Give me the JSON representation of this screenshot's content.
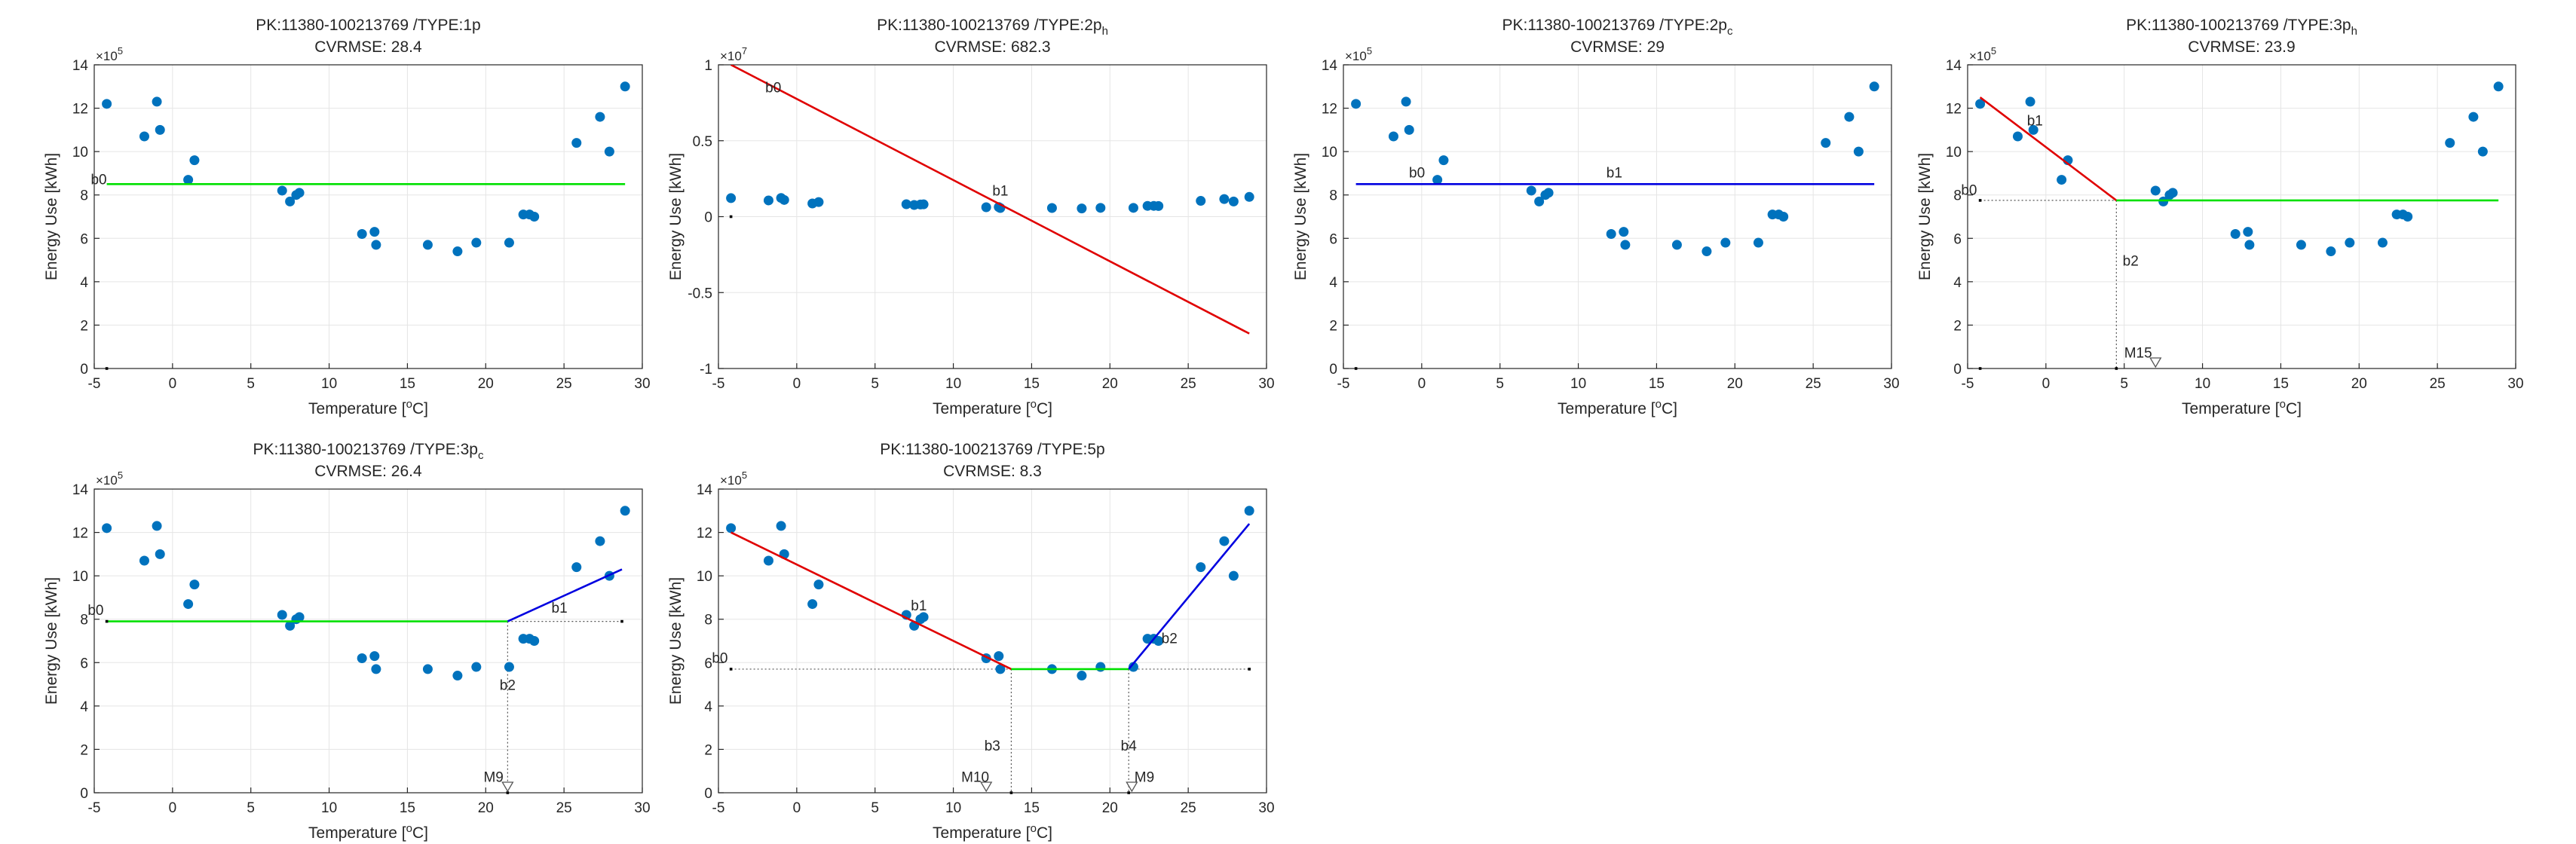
{
  "chart_data": [
    {
      "type": "scatter",
      "title": "PK:11380-100213769 /TYPE:1p",
      "title_sub": "",
      "subtitle": "CVRMSE: 28.4",
      "xlabel": "Temperature [",
      "xlabel_sup": "o",
      "xlabel_end": "C]",
      "ylabel": "Energy Use [kWh]",
      "y_exponent": "10",
      "y_exponent_power": "5",
      "xlim": [
        -5,
        30
      ],
      "ylim": [
        0,
        14
      ],
      "xticks": [
        -5,
        0,
        5,
        10,
        15,
        20,
        25,
        30
      ],
      "yticks": [
        0,
        2,
        4,
        6,
        8,
        10,
        12,
        14
      ],
      "grid": true,
      "points": [
        [
          -4.2,
          12.2
        ],
        [
          -1.8,
          10.7
        ],
        [
          -1.0,
          12.3
        ],
        [
          -0.8,
          11.0
        ],
        [
          1.0,
          8.7
        ],
        [
          1.4,
          9.6
        ],
        [
          7.0,
          8.2
        ],
        [
          7.5,
          7.7
        ],
        [
          7.9,
          8.0
        ],
        [
          8.1,
          8.1
        ],
        [
          12.1,
          6.2
        ],
        [
          12.9,
          6.3
        ],
        [
          13.0,
          5.7
        ],
        [
          16.3,
          5.7
        ],
        [
          18.2,
          5.4
        ],
        [
          19.4,
          5.8
        ],
        [
          21.5,
          5.8
        ],
        [
          22.4,
          7.1
        ],
        [
          22.8,
          7.1
        ],
        [
          23.1,
          7.0
        ],
        [
          25.8,
          10.4
        ],
        [
          27.3,
          11.6
        ],
        [
          27.9,
          10.0
        ],
        [
          28.9,
          13.0
        ]
      ],
      "segments": [
        {
          "x": [
            -4.2,
            28.9
          ],
          "y": [
            8.5,
            8.5
          ],
          "color": "#00e000"
        }
      ],
      "dotted": [],
      "markers": [
        {
          "x": -4.2,
          "y": 0
        }
      ],
      "annotations": [
        {
          "text": "b0",
          "x": -4.2,
          "y": 8.5,
          "anchor": "end"
        }
      ]
    },
    {
      "type": "scatter",
      "title": "PK:11380-100213769 /TYPE:2p",
      "title_sub": "h",
      "subtitle": "CVRMSE: 682.3",
      "xlabel": "Temperature [",
      "xlabel_sup": "o",
      "xlabel_end": "C]",
      "ylabel": "Energy Use [kWh]",
      "y_exponent": "10",
      "y_exponent_power": "7",
      "xlim": [
        -5,
        30
      ],
      "ylim": [
        -1,
        1
      ],
      "xticks": [
        -5,
        0,
        5,
        10,
        15,
        20,
        25,
        30
      ],
      "yticks": [
        -1,
        -0.5,
        0,
        0.5,
        1
      ],
      "grid": true,
      "points": [
        [
          -4.2,
          0.122
        ],
        [
          -1.8,
          0.107
        ],
        [
          -1.0,
          0.123
        ],
        [
          -0.8,
          0.11
        ],
        [
          1.0,
          0.087
        ],
        [
          1.4,
          0.096
        ],
        [
          7.0,
          0.082
        ],
        [
          7.5,
          0.077
        ],
        [
          7.9,
          0.08
        ],
        [
          8.1,
          0.081
        ],
        [
          12.1,
          0.062
        ],
        [
          12.9,
          0.063
        ],
        [
          13.0,
          0.057
        ],
        [
          16.3,
          0.057
        ],
        [
          18.2,
          0.054
        ],
        [
          19.4,
          0.058
        ],
        [
          21.5,
          0.058
        ],
        [
          22.4,
          0.071
        ],
        [
          22.8,
          0.071
        ],
        [
          23.1,
          0.07
        ],
        [
          25.8,
          0.104
        ],
        [
          27.3,
          0.116
        ],
        [
          27.9,
          0.1
        ],
        [
          28.9,
          0.13
        ]
      ],
      "segments": [
        {
          "x": [
            -4.2,
            28.9
          ],
          "y": [
            1.0,
            -0.77
          ],
          "color": "#e00000"
        }
      ],
      "dotted": [],
      "markers": [
        {
          "x": -4.2,
          "y": 0
        }
      ],
      "annotations": [
        {
          "text": "b0",
          "x": -1.5,
          "y": 0.82,
          "anchor": "middle"
        },
        {
          "text": "b1",
          "x": 13.0,
          "y": 0.14,
          "anchor": "middle"
        }
      ]
    },
    {
      "type": "scatter",
      "title": "PK:11380-100213769 /TYPE:2p",
      "title_sub": "c",
      "subtitle": "CVRMSE: 29",
      "xlabel": "Temperature [",
      "xlabel_sup": "o",
      "xlabel_end": "C]",
      "ylabel": "Energy Use [kWh]",
      "y_exponent": "10",
      "y_exponent_power": "5",
      "xlim": [
        -5,
        30
      ],
      "ylim": [
        0,
        14
      ],
      "xticks": [
        -5,
        0,
        5,
        10,
        15,
        20,
        25,
        30
      ],
      "yticks": [
        0,
        2,
        4,
        6,
        8,
        10,
        12,
        14
      ],
      "grid": true,
      "points": [
        [
          -4.2,
          12.2
        ],
        [
          -1.8,
          10.7
        ],
        [
          -1.0,
          12.3
        ],
        [
          -0.8,
          11.0
        ],
        [
          1.0,
          8.7
        ],
        [
          1.4,
          9.6
        ],
        [
          7.0,
          8.2
        ],
        [
          7.5,
          7.7
        ],
        [
          7.9,
          8.0
        ],
        [
          8.1,
          8.1
        ],
        [
          12.1,
          6.2
        ],
        [
          12.9,
          6.3
        ],
        [
          13.0,
          5.7
        ],
        [
          16.3,
          5.7
        ],
        [
          18.2,
          5.4
        ],
        [
          19.4,
          5.8
        ],
        [
          21.5,
          5.8
        ],
        [
          22.4,
          7.1
        ],
        [
          22.8,
          7.1
        ],
        [
          23.1,
          7.0
        ],
        [
          25.8,
          10.4
        ],
        [
          27.3,
          11.6
        ],
        [
          27.9,
          10.0
        ],
        [
          28.9,
          13.0
        ]
      ],
      "segments": [
        {
          "x": [
            -4.2,
            28.9
          ],
          "y": [
            8.5,
            8.5
          ],
          "color": "#0000e0"
        }
      ],
      "dotted": [],
      "markers": [
        {
          "x": -4.2,
          "y": 0
        }
      ],
      "annotations": [
        {
          "text": "b0",
          "x": -0.3,
          "y": 8.8,
          "anchor": "middle"
        },
        {
          "text": "b1",
          "x": 12.3,
          "y": 8.8,
          "anchor": "middle"
        }
      ]
    },
    {
      "type": "scatter",
      "title": "PK:11380-100213769 /TYPE:3p",
      "title_sub": "h",
      "subtitle": "CVRMSE: 23.9",
      "xlabel": "Temperature [",
      "xlabel_sup": "o",
      "xlabel_end": "C]",
      "ylabel": "Energy Use [kWh]",
      "y_exponent": "10",
      "y_exponent_power": "5",
      "xlim": [
        -5,
        30
      ],
      "ylim": [
        0,
        14
      ],
      "xticks": [
        -5,
        0,
        5,
        10,
        15,
        20,
        25,
        30
      ],
      "yticks": [
        0,
        2,
        4,
        6,
        8,
        10,
        12,
        14
      ],
      "grid": true,
      "points": [
        [
          -4.2,
          12.2
        ],
        [
          -1.8,
          10.7
        ],
        [
          -1.0,
          12.3
        ],
        [
          -0.8,
          11.0
        ],
        [
          1.0,
          8.7
        ],
        [
          1.4,
          9.6
        ],
        [
          7.0,
          8.2
        ],
        [
          7.5,
          7.7
        ],
        [
          7.9,
          8.0
        ],
        [
          8.1,
          8.1
        ],
        [
          12.1,
          6.2
        ],
        [
          12.9,
          6.3
        ],
        [
          13.0,
          5.7
        ],
        [
          16.3,
          5.7
        ],
        [
          18.2,
          5.4
        ],
        [
          19.4,
          5.8
        ],
        [
          21.5,
          5.8
        ],
        [
          22.4,
          7.1
        ],
        [
          22.8,
          7.1
        ],
        [
          23.1,
          7.0
        ],
        [
          25.8,
          10.4
        ],
        [
          27.3,
          11.6
        ],
        [
          27.9,
          10.0
        ],
        [
          28.9,
          13.0
        ]
      ],
      "segments": [
        {
          "x": [
            -4.2,
            4.5
          ],
          "y": [
            12.5,
            7.75
          ],
          "color": "#e00000"
        },
        {
          "x": [
            4.5,
            28.9
          ],
          "y": [
            7.75,
            7.75
          ],
          "color": "#00e000"
        }
      ],
      "dotted": [
        {
          "x": [
            -4.2,
            4.5
          ],
          "y": [
            7.75,
            7.75
          ]
        },
        {
          "x": [
            4.5,
            4.5
          ],
          "y": [
            7.75,
            0
          ]
        }
      ],
      "markers": [
        {
          "x": -4.2,
          "y": 0
        },
        {
          "x": -4.2,
          "y": 7.75
        },
        {
          "x": 4.5,
          "y": 0
        }
      ],
      "triangles": [
        {
          "x": 7.0,
          "y": 0
        }
      ],
      "annotations": [
        {
          "text": "b0",
          "x": -4.4,
          "y": 8.0,
          "anchor": "end"
        },
        {
          "text": "b1",
          "x": -0.7,
          "y": 11.2,
          "anchor": "middle"
        },
        {
          "text": "b2",
          "x": 4.9,
          "y": 8.5,
          "anchor": "start",
          "dy_below": true
        },
        {
          "text": "M15",
          "x": 5.0,
          "y": 0.5,
          "anchor": "start"
        }
      ]
    },
    {
      "type": "scatter",
      "title": "PK:11380-100213769 /TYPE:3p",
      "title_sub": "c",
      "subtitle": "CVRMSE: 26.4",
      "xlabel": "Temperature [",
      "xlabel_sup": "o",
      "xlabel_end": "C]",
      "ylabel": "Energy Use [kWh]",
      "y_exponent": "10",
      "y_exponent_power": "5",
      "xlim": [
        -5,
        30
      ],
      "ylim": [
        0,
        14
      ],
      "xticks": [
        -5,
        0,
        5,
        10,
        15,
        20,
        25,
        30
      ],
      "yticks": [
        0,
        2,
        4,
        6,
        8,
        10,
        12,
        14
      ],
      "grid": true,
      "points": [
        [
          -4.2,
          12.2
        ],
        [
          -1.8,
          10.7
        ],
        [
          -1.0,
          12.3
        ],
        [
          -0.8,
          11.0
        ],
        [
          1.0,
          8.7
        ],
        [
          1.4,
          9.6
        ],
        [
          7.0,
          8.2
        ],
        [
          7.5,
          7.7
        ],
        [
          7.9,
          8.0
        ],
        [
          8.1,
          8.1
        ],
        [
          12.1,
          6.2
        ],
        [
          12.9,
          6.3
        ],
        [
          13.0,
          5.7
        ],
        [
          16.3,
          5.7
        ],
        [
          18.2,
          5.4
        ],
        [
          19.4,
          5.8
        ],
        [
          21.5,
          5.8
        ],
        [
          22.4,
          7.1
        ],
        [
          22.8,
          7.1
        ],
        [
          23.1,
          7.0
        ],
        [
          25.8,
          10.4
        ],
        [
          27.3,
          11.6
        ],
        [
          27.9,
          10.0
        ],
        [
          28.9,
          13.0
        ]
      ],
      "segments": [
        {
          "x": [
            -4.2,
            21.4
          ],
          "y": [
            7.9,
            7.9
          ],
          "color": "#00e000"
        },
        {
          "x": [
            21.4,
            28.7
          ],
          "y": [
            7.9,
            10.3
          ],
          "color": "#0000e0"
        }
      ],
      "dotted": [
        {
          "x": [
            21.4,
            28.7
          ],
          "y": [
            7.9,
            7.9
          ]
        },
        {
          "x": [
            21.4,
            21.4
          ],
          "y": [
            7.9,
            0
          ]
        }
      ],
      "markers": [
        {
          "x": -4.2,
          "y": 7.9
        },
        {
          "x": 28.7,
          "y": 7.9
        },
        {
          "x": 21.4,
          "y": 0
        }
      ],
      "triangles": [
        {
          "x": 21.4,
          "y": 0
        }
      ],
      "annotations": [
        {
          "text": "b0",
          "x": -4.4,
          "y": 8.2,
          "anchor": "end"
        },
        {
          "text": "b1",
          "x": 24.2,
          "y": 8.3,
          "anchor": "start"
        },
        {
          "text": "b2",
          "x": 21.4,
          "y": 8.5,
          "anchor": "middle",
          "dy_below": true
        },
        {
          "text": "M9",
          "x": 20.5,
          "y": 0.5,
          "anchor": "middle"
        }
      ]
    },
    {
      "type": "scatter",
      "title": "PK:11380-100213769 /TYPE:5p",
      "title_sub": "",
      "subtitle": "CVRMSE: 8.3",
      "xlabel": "Temperature [",
      "xlabel_sup": "o",
      "xlabel_end": "C]",
      "ylabel": "Energy Use [kWh]",
      "y_exponent": "10",
      "y_exponent_power": "5",
      "xlim": [
        -5,
        30
      ],
      "ylim": [
        0,
        14
      ],
      "xticks": [
        -5,
        0,
        5,
        10,
        15,
        20,
        25,
        30
      ],
      "yticks": [
        0,
        2,
        4,
        6,
        8,
        10,
        12,
        14
      ],
      "grid": true,
      "points": [
        [
          -4.2,
          12.2
        ],
        [
          -1.8,
          10.7
        ],
        [
          -1.0,
          12.3
        ],
        [
          -0.8,
          11.0
        ],
        [
          1.0,
          8.7
        ],
        [
          1.4,
          9.6
        ],
        [
          7.0,
          8.2
        ],
        [
          7.5,
          7.7
        ],
        [
          7.9,
          8.0
        ],
        [
          8.1,
          8.1
        ],
        [
          12.1,
          6.2
        ],
        [
          12.9,
          6.3
        ],
        [
          13.0,
          5.7
        ],
        [
          16.3,
          5.7
        ],
        [
          18.2,
          5.4
        ],
        [
          19.4,
          5.8
        ],
        [
          21.5,
          5.8
        ],
        [
          22.4,
          7.1
        ],
        [
          22.8,
          7.1
        ],
        [
          23.1,
          7.0
        ],
        [
          25.8,
          10.4
        ],
        [
          27.3,
          11.6
        ],
        [
          27.9,
          10.0
        ],
        [
          28.9,
          13.0
        ]
      ],
      "segments": [
        {
          "x": [
            -4.2,
            13.7
          ],
          "y": [
            12.0,
            5.7
          ],
          "color": "#e00000"
        },
        {
          "x": [
            13.7,
            21.2
          ],
          "y": [
            5.7,
            5.7
          ],
          "color": "#00e000"
        },
        {
          "x": [
            21.2,
            28.9
          ],
          "y": [
            5.7,
            12.4
          ],
          "color": "#0000e0"
        }
      ],
      "dotted": [
        {
          "x": [
            -4.2,
            28.9
          ],
          "y": [
            5.7,
            5.7
          ]
        },
        {
          "x": [
            13.7,
            13.7
          ],
          "y": [
            5.7,
            0
          ]
        },
        {
          "x": [
            21.2,
            21.2
          ],
          "y": [
            5.7,
            0
          ]
        }
      ],
      "markers": [
        {
          "x": -4.2,
          "y": 5.7
        },
        {
          "x": 28.9,
          "y": 5.7
        },
        {
          "x": 13.7,
          "y": 0
        },
        {
          "x": 21.2,
          "y": 0
        }
      ],
      "triangles": [
        {
          "x": 12.1,
          "y": 0
        },
        {
          "x": 21.4,
          "y": 0
        }
      ],
      "annotations": [
        {
          "text": "b0",
          "x": -4.4,
          "y": 6.0,
          "anchor": "end"
        },
        {
          "text": "b1",
          "x": 7.8,
          "y": 8.4,
          "anchor": "middle"
        },
        {
          "text": "b2",
          "x": 23.8,
          "y": 6.9,
          "anchor": "middle"
        },
        {
          "text": "b3",
          "x": 13.0,
          "y": 5.7,
          "anchor": "end",
          "dy_below": true
        },
        {
          "text": "b4",
          "x": 21.2,
          "y": 5.7,
          "anchor": "middle",
          "dy_below": true
        },
        {
          "text": "M10",
          "x": 11.4,
          "y": 0.5,
          "anchor": "middle"
        },
        {
          "text": "M9",
          "x": 22.2,
          "y": 0.5,
          "anchor": "middle"
        }
      ]
    }
  ],
  "colors": {
    "points": "#0072bd",
    "axis": "#262626",
    "grid": "#e5e5e5"
  }
}
